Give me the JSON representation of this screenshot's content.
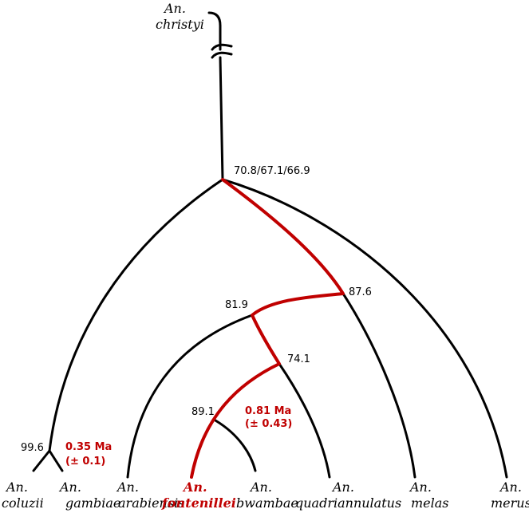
{
  "outgroup": {
    "genus": "An.",
    "species": "christyi"
  },
  "taxa": [
    {
      "id": "coluzii",
      "genus": "An.",
      "species": "coluzii",
      "highlight": false
    },
    {
      "id": "gambiae",
      "genus": "An.",
      "species": "gambiae",
      "highlight": false
    },
    {
      "id": "arabiensis",
      "genus": "An.",
      "species": "arabiensis",
      "highlight": false
    },
    {
      "id": "fontenillei",
      "genus": "An.",
      "species": "fontenillei",
      "highlight": true
    },
    {
      "id": "bwambae",
      "genus": "An.",
      "species": "bwambae",
      "highlight": false
    },
    {
      "id": "quadriannulatus",
      "genus": "An.",
      "species": "quadriannulatus",
      "highlight": false
    },
    {
      "id": "melas",
      "genus": "An.",
      "species": "melas",
      "highlight": false
    },
    {
      "id": "merus",
      "genus": "An.",
      "species": "merus",
      "highlight": false
    }
  ],
  "support_values": {
    "root": "70.8/67.1/66.9",
    "melas_clade": "87.6",
    "arabiensis_clade": "81.9",
    "quadriannulatus_clade": "74.1",
    "fontenillei_bwambae": "89.1",
    "coluzii_gambiae": "99.6"
  },
  "divergence_times": {
    "coluzii_gambiae": {
      "line1": "0.35 Ma",
      "line2": "(± 0.1)"
    },
    "fontenillei_bwambae": {
      "line1": "0.81 Ma",
      "line2": "(± 0.43)"
    }
  },
  "colors": {
    "highlight": "#c00000",
    "branch": "#000000"
  }
}
